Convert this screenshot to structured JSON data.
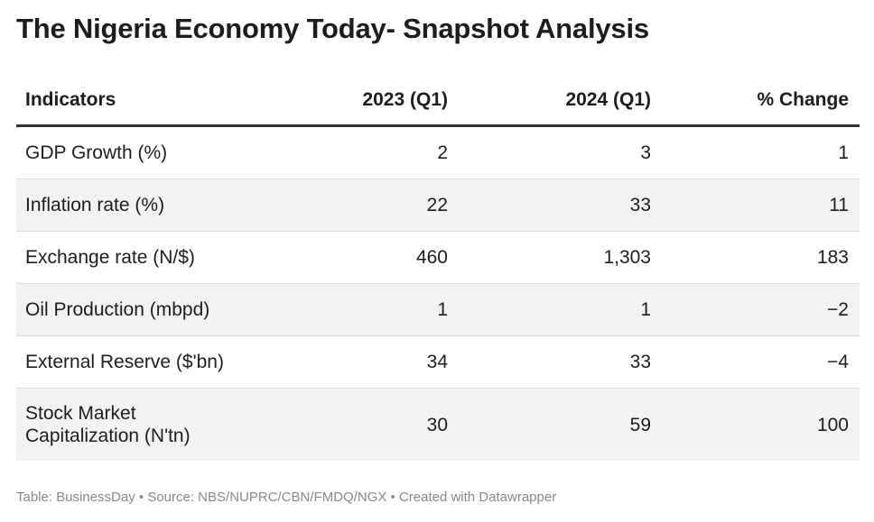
{
  "title": "The Nigeria Economy Today- Snapshot Analysis",
  "table": {
    "header": [
      "Indicators",
      "2023 (Q1)",
      "2024 (Q1)",
      "% Change"
    ],
    "rows": [
      [
        "GDP Growth (%)",
        "2",
        "3",
        "1"
      ],
      [
        "Inflation rate (%)",
        "22",
        "33",
        "11"
      ],
      [
        "Exchange rate (N/$)",
        "460",
        "1,303",
        "183"
      ],
      [
        "Oil Production (mbpd)",
        "1",
        "1",
        "−2"
      ],
      [
        "External Reserve ($'bn)",
        "34",
        "33",
        "−4"
      ],
      [
        "Stock Market Capitalization (N'tn)",
        "30",
        "59",
        "100"
      ]
    ]
  },
  "footer": "Table: BusinessDay • Source: NBS/NUPRC/CBN/FMDQ/NGX • Created with Datawrapper"
}
